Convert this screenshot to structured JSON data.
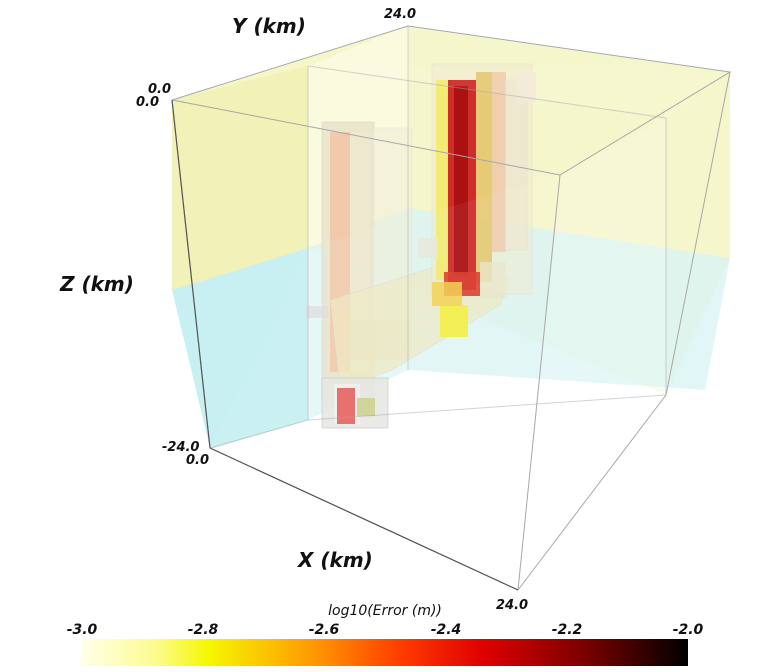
{
  "axes": {
    "x_title": "X (km)",
    "y_title": "Y (km)",
    "z_title": "Z (km)",
    "ticks": {
      "y_max": "24.0",
      "origin_y": "0.0",
      "origin_z": "0.0",
      "z_min": "-24.0",
      "x_min": "0.0",
      "x_max": "24.0"
    }
  },
  "colorbar": {
    "title": "log10(Error (m))",
    "ticks": [
      "-3.0",
      "-2.8",
      "-2.6",
      "-2.4",
      "-2.2",
      "-2.0"
    ],
    "range": [
      -3.0,
      -2.0
    ],
    "colors": [
      "#ffffe8",
      "#f6f600",
      "#ff3a00",
      "#e00000",
      "#000000"
    ]
  },
  "colors": {
    "upper_layer": "#f3f3b4",
    "lower_layer": "#c6f0f2",
    "box_edge": "#9a9a9a"
  }
}
